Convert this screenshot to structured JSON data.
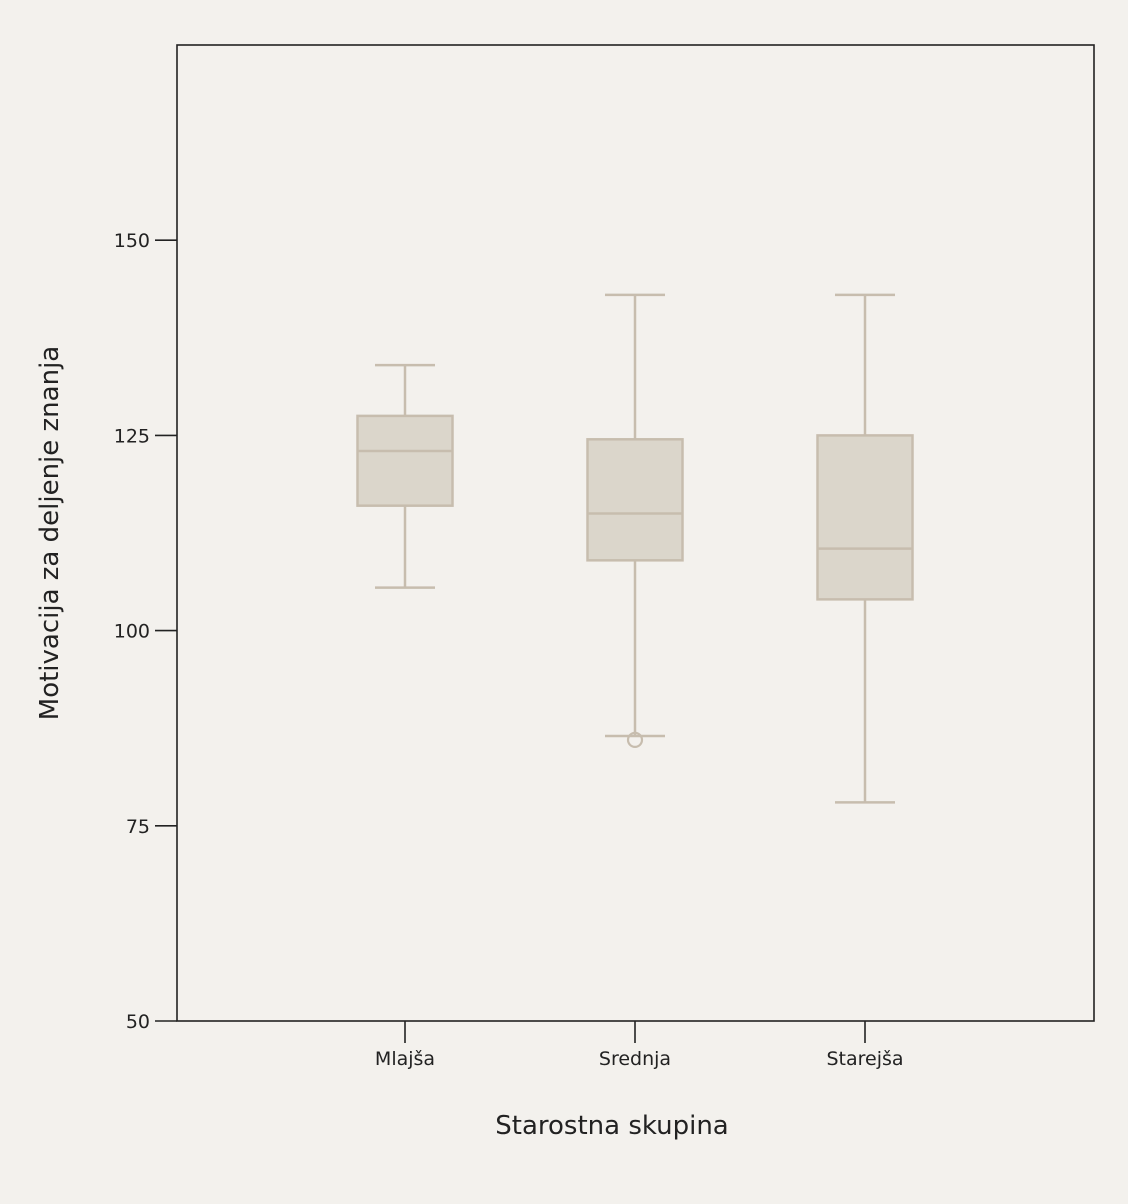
{
  "chart_data": {
    "type": "boxplot",
    "title": "",
    "xlabel": "Starostna skupina",
    "ylabel": "Motivacija za deljenje znanja",
    "ylim": [
      50,
      175
    ],
    "yticks": [
      "50",
      "75",
      "100",
      "125",
      "150"
    ],
    "categories": [
      "Mlajša",
      "Srednja",
      "Starejša"
    ],
    "boxes": [
      {
        "category": "Mlajša",
        "whisker_low": 105.5,
        "q1": 116,
        "median": 123,
        "q3": 127.5,
        "whisker_high": 134,
        "outliers": []
      },
      {
        "category": "Srednja",
        "whisker_low": 86.5,
        "q1": 109,
        "median": 115,
        "q3": 124.5,
        "whisker_high": 143,
        "outliers": [
          86
        ]
      },
      {
        "category": "Starejša",
        "whisker_low": 78,
        "q1": 104,
        "median": 110.5,
        "q3": 125,
        "whisker_high": 143,
        "outliers": []
      }
    ],
    "grid": false,
    "box_fill": "#dbd6cb",
    "box_stroke": "#c7bdae",
    "axis_color": "#222222"
  }
}
